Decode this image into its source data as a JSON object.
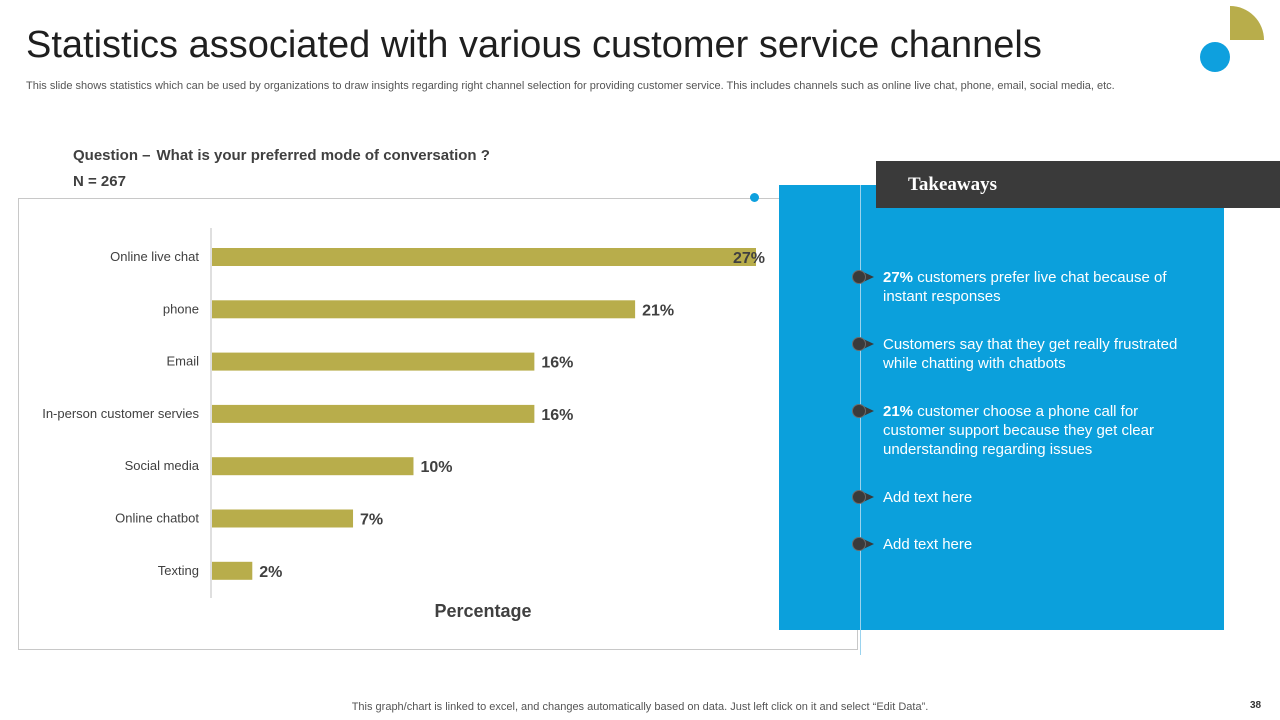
{
  "title": "Statistics associated with various customer service channels",
  "subtitle": "This slide shows statistics which can be used by organizations to draw insights regarding right channel selection for providing customer service. This includes channels such as online live chat, phone, email, social media, etc.",
  "question": {
    "prefix": "Question –",
    "text": "What is your preferred mode of conversation ?",
    "n_label": "N = 267"
  },
  "chart_data": {
    "type": "bar",
    "orientation": "horizontal",
    "categories": [
      "Online live chat",
      "phone",
      "Email",
      "In-person customer servies",
      "Social media",
      "Online chatbot",
      "Texting"
    ],
    "values": [
      27,
      21,
      16,
      16,
      10,
      7,
      2
    ],
    "value_labels": [
      "27%",
      "21%",
      "16%",
      "16%",
      "10%",
      "7%",
      "2%"
    ],
    "xlabel": "Percentage",
    "ylabel": "",
    "xlim": [
      0,
      27
    ],
    "bar_color": "#b8ad4b",
    "grid": false
  },
  "takeaways": {
    "title": "Takeaways",
    "items": [
      {
        "bold": "27%",
        "text": " customers prefer live chat because of instant responses"
      },
      {
        "bold": "",
        "text": "Customers say that they get really frustrated while chatting with chatbots"
      },
      {
        "bold": "21%",
        "text": " customer choose a phone call for customer support because they get clear understanding regarding issues"
      },
      {
        "bold": "",
        "text": "Add text here"
      },
      {
        "bold": "",
        "text": "Add text here"
      }
    ]
  },
  "footer": "This graph/chart is linked to excel, and changes automatically based on data. Just left click on it and select “Edit Data”.",
  "page_number": "38",
  "colors": {
    "accent_blue": "#0ba0dc",
    "accent_olive": "#b8ad4b",
    "dark": "#3a3a3a"
  }
}
